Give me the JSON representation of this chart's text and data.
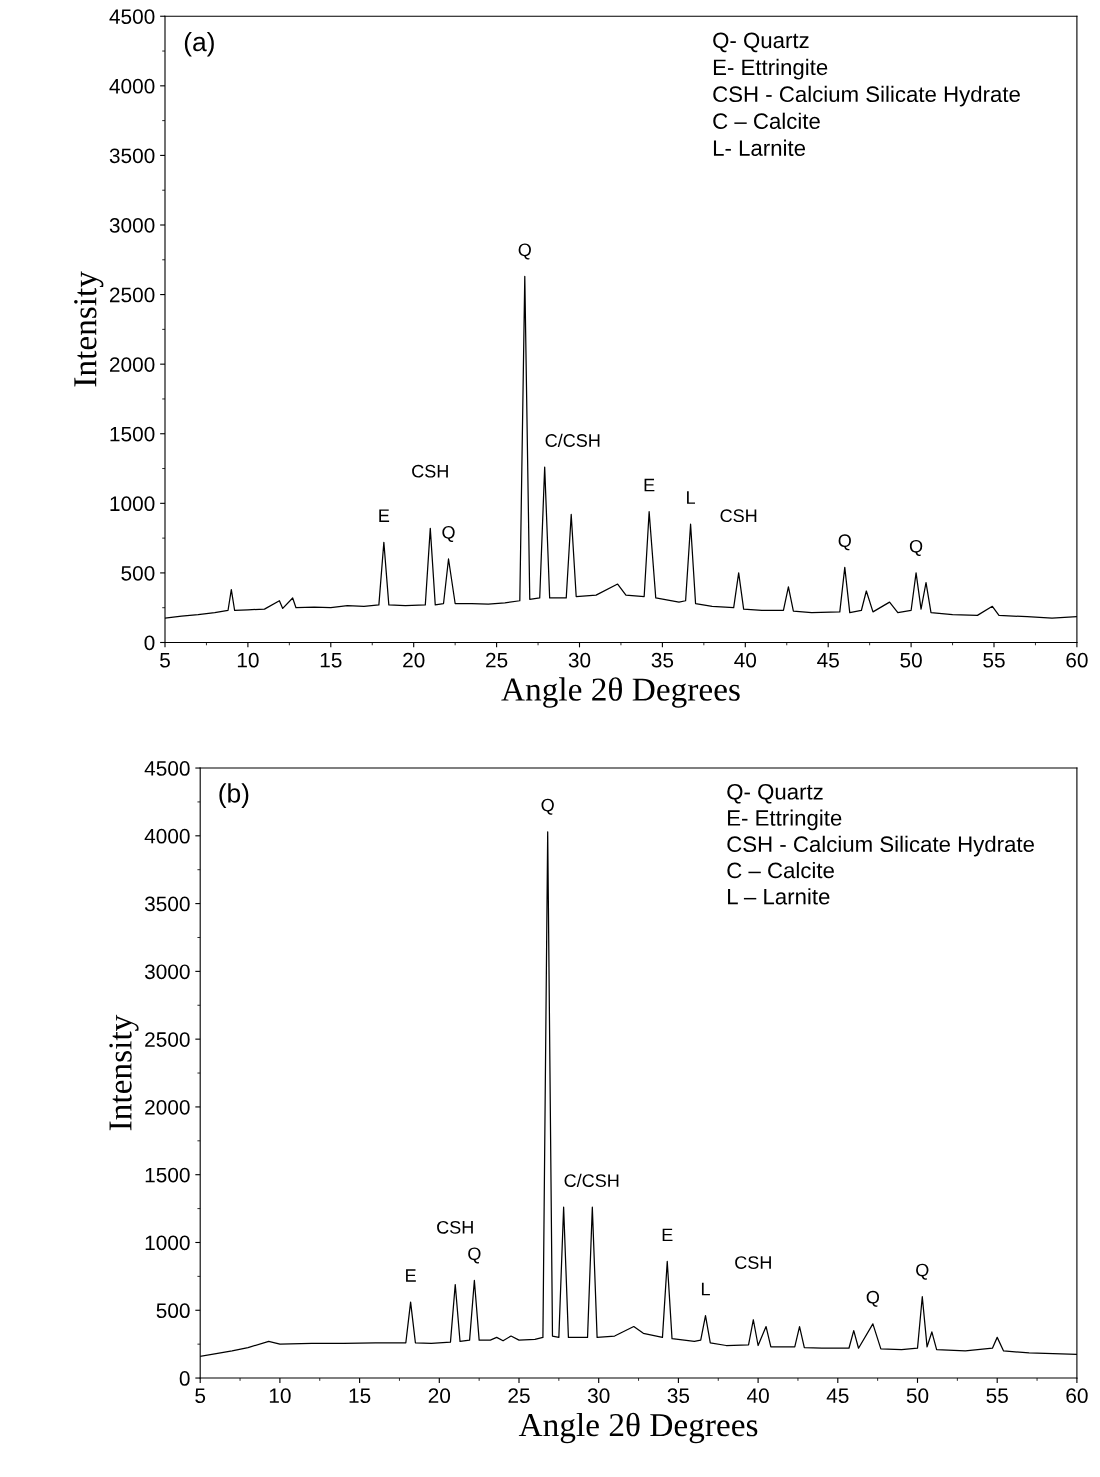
{
  "chart_data": [
    {
      "type": "line",
      "title": "(a)",
      "xlabel": "Angle 2θ Degrees",
      "ylabel": "Intensity",
      "color": "#000000",
      "xlim": [
        5,
        60
      ],
      "ylim": [
        0,
        4500
      ],
      "xticks": [
        5,
        10,
        15,
        20,
        25,
        30,
        35,
        40,
        45,
        50,
        55,
        60
      ],
      "yticks": [
        0,
        500,
        1000,
        1500,
        2000,
        2500,
        3000,
        3500,
        4000,
        4500
      ],
      "grid": false,
      "legend": false,
      "marker": "none",
      "line_style": "solid",
      "x": [
        5,
        6,
        7,
        8,
        8.8,
        9.0,
        9.2,
        10,
        11,
        11.9,
        12.1,
        12.7,
        12.9,
        14,
        15,
        16,
        17,
        17.9,
        18.2,
        18.5,
        19.5,
        20.7,
        21.0,
        21.3,
        21.8,
        22.1,
        22.5,
        23.5,
        24.5,
        25.5,
        26.4,
        26.7,
        27.0,
        27.6,
        27.9,
        28.2,
        29.2,
        29.5,
        29.8,
        31,
        32.3,
        32.8,
        33.9,
        34.2,
        34.6,
        36.0,
        36.4,
        36.7,
        37.0,
        38,
        39.3,
        39.6,
        39.9,
        41,
        42.3,
        42.6,
        42.9,
        44,
        45.7,
        46.0,
        46.3,
        47.0,
        47.3,
        47.7,
        48.7,
        49.2,
        50.0,
        50.3,
        50.6,
        50.9,
        51.2,
        52.5,
        54,
        54.9,
        55.3,
        57,
        58.5,
        60
      ],
      "values": [
        175,
        190,
        200,
        215,
        230,
        380,
        230,
        235,
        240,
        300,
        245,
        320,
        250,
        255,
        250,
        265,
        260,
        270,
        720,
        270,
        265,
        270,
        820,
        270,
        280,
        600,
        280,
        280,
        275,
        285,
        300,
        2630,
        310,
        320,
        1260,
        320,
        320,
        920,
        330,
        340,
        420,
        340,
        330,
        940,
        320,
        290,
        300,
        850,
        280,
        260,
        250,
        500,
        240,
        230,
        230,
        400,
        225,
        215,
        220,
        540,
        215,
        230,
        370,
        220,
        290,
        215,
        230,
        500,
        240,
        430,
        215,
        200,
        195,
        260,
        195,
        185,
        175,
        185
      ],
      "annotations": [
        "Q- Quartz",
        "E- Ettringite",
        "CSH - Calcium Silicate Hydrate",
        "C – Calcite",
        "L- Larnite",
        {
          "text": "E",
          "x": 18.2,
          "y": 720
        },
        {
          "text": "CSH",
          "x": 21.0,
          "y": 820
        },
        {
          "text": "Q",
          "x": 22.1,
          "y": 600
        },
        {
          "text": "Q",
          "x": 26.7,
          "y": 2630
        },
        {
          "text": "C/CSH",
          "x": 27.9,
          "y": 1260
        },
        {
          "text": "E",
          "x": 34.2,
          "y": 940
        },
        {
          "text": "L",
          "x": 36.7,
          "y": 850
        },
        {
          "text": "CSH",
          "x": 39.6,
          "y": 500
        },
        {
          "text": "Q",
          "x": 46.0,
          "y": 540
        },
        {
          "text": "Q",
          "x": 50.3,
          "y": 500
        }
      ]
    },
    {
      "type": "line",
      "title": "(b)",
      "xlabel": "Angle 2θ Degrees",
      "ylabel": "Intensity",
      "color": "#000000",
      "xlim": [
        5,
        60
      ],
      "ylim": [
        0,
        4500
      ],
      "xticks": [
        5,
        10,
        15,
        20,
        25,
        30,
        35,
        40,
        45,
        50,
        55,
        60
      ],
      "yticks": [
        0,
        500,
        1000,
        1500,
        2000,
        2500,
        3000,
        3500,
        4000,
        4500
      ],
      "grid": false,
      "legend": false,
      "marker": "none",
      "line_style": "solid",
      "x": [
        5,
        6,
        7,
        8,
        9.3,
        10,
        12,
        14,
        16,
        17.9,
        18.2,
        18.5,
        19.5,
        20.7,
        21.0,
        21.3,
        21.9,
        22.2,
        22.5,
        23.2,
        23.6,
        24.0,
        24.5,
        25,
        26,
        26.5,
        26.8,
        27.1,
        27.5,
        27.8,
        28.1,
        29.3,
        29.6,
        29.9,
        31,
        32.2,
        32.8,
        34.0,
        34.3,
        34.6,
        36.0,
        36.4,
        36.7,
        37.0,
        38,
        39.4,
        39.7,
        40.0,
        40.5,
        40.8,
        42.3,
        42.6,
        42.9,
        44,
        45.7,
        46.0,
        46.3,
        47.2,
        47.7,
        49,
        50.0,
        50.3,
        50.6,
        50.9,
        51.2,
        53,
        54.7,
        55.0,
        55.4,
        57,
        60
      ],
      "values": [
        160,
        180,
        200,
        225,
        270,
        250,
        255,
        255,
        260,
        260,
        560,
        260,
        255,
        265,
        690,
        270,
        280,
        720,
        280,
        280,
        300,
        275,
        310,
        280,
        285,
        300,
        4030,
        310,
        300,
        1260,
        300,
        300,
        1260,
        300,
        310,
        380,
        330,
        300,
        860,
        290,
        270,
        280,
        460,
        260,
        240,
        245,
        430,
        240,
        380,
        230,
        230,
        380,
        225,
        220,
        220,
        350,
        220,
        400,
        215,
        210,
        220,
        600,
        230,
        340,
        210,
        200,
        220,
        300,
        200,
        185,
        175
      ],
      "annotations": [
        "Q- Quartz",
        "E- Ettringite",
        "CSH - Calcium Silicate Hydrate",
        "C – Calcite",
        "L – Larnite",
        {
          "text": "E",
          "x": 18.2,
          "y": 560
        },
        {
          "text": "CSH",
          "x": 21.0,
          "y": 690
        },
        {
          "text": "Q",
          "x": 22.2,
          "y": 720
        },
        {
          "text": "Q",
          "x": 26.8,
          "y": 4030
        },
        {
          "text": "C/CSH",
          "x": 27.8,
          "y": 1260
        },
        {
          "text": "E",
          "x": 34.3,
          "y": 860
        },
        {
          "text": "L",
          "x": 36.7,
          "y": 460
        },
        {
          "text": "CSH",
          "x": 39.7,
          "y": 430
        },
        {
          "text": "Q",
          "x": 47.2,
          "y": 400
        },
        {
          "text": "Q",
          "x": 50.3,
          "y": 600
        }
      ]
    }
  ]
}
